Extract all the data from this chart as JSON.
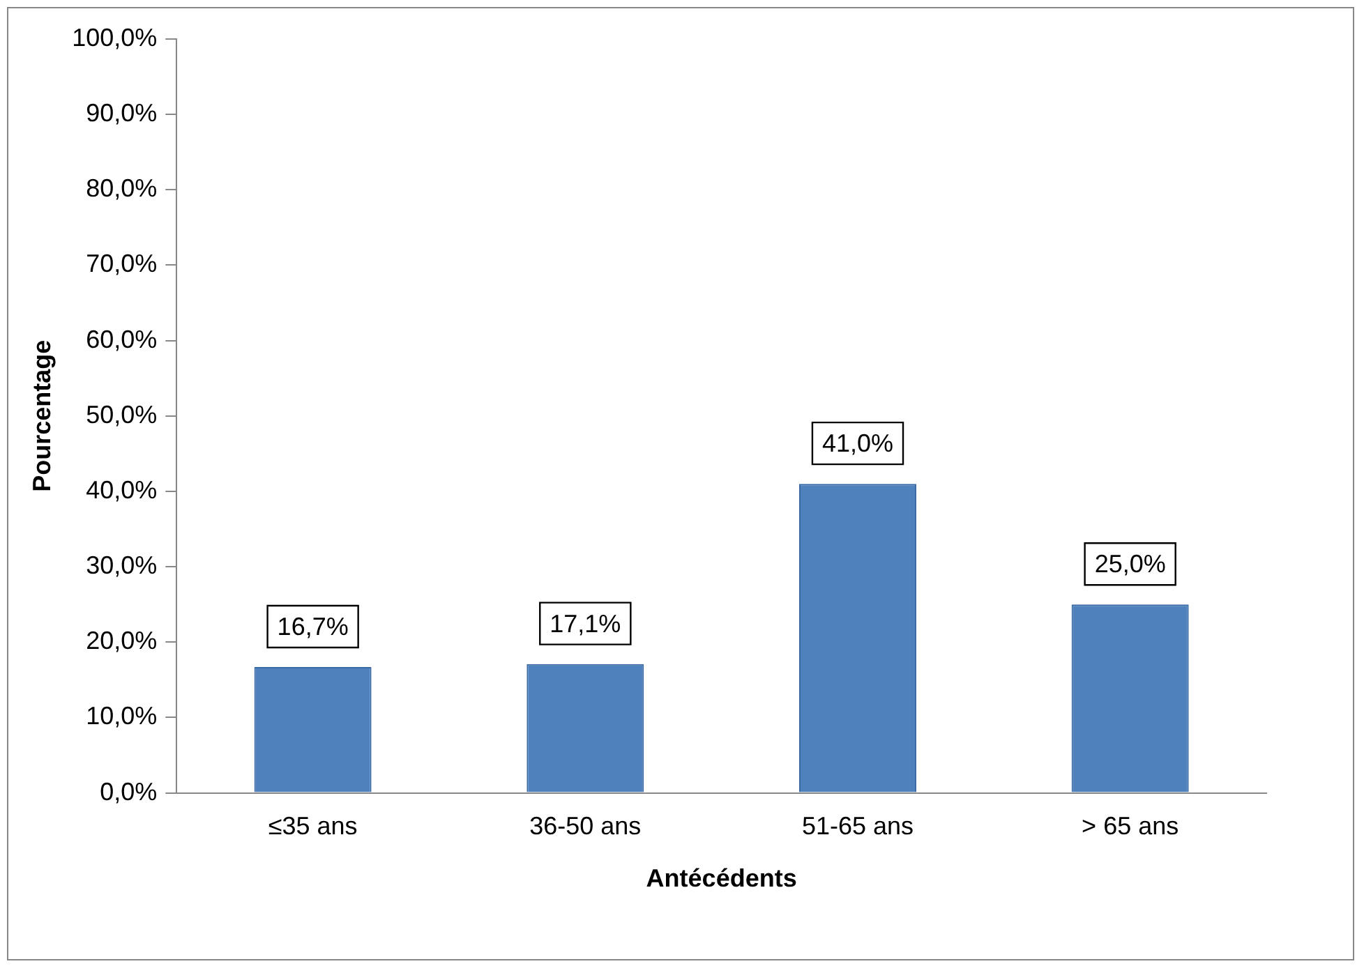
{
  "chart_data": {
    "type": "bar",
    "xlabel": "Antécédents",
    "ylabel": "Pourcentage",
    "categories": [
      "≤35 ans",
      "36-50 ans",
      "51-65 ans",
      "> 65 ans"
    ],
    "values": [
      16.7,
      17.1,
      41.0,
      25.0
    ],
    "value_labels": [
      "16,7%",
      "17,1%",
      "41,0%",
      "25,0%"
    ],
    "color": "#4f81bd",
    "ylim": [
      0,
      100
    ],
    "yticks": [
      {
        "value": 0,
        "label": "0,0%"
      },
      {
        "value": 10,
        "label": "10,0%"
      },
      {
        "value": 20,
        "label": "20,0%"
      },
      {
        "value": 30,
        "label": "30,0%"
      },
      {
        "value": 40,
        "label": "40,0%"
      },
      {
        "value": 50,
        "label": "50,0%"
      },
      {
        "value": 60,
        "label": "60,0%"
      },
      {
        "value": 70,
        "label": "70,0%"
      },
      {
        "value": 80,
        "label": "80,0%"
      },
      {
        "value": 90,
        "label": "90,0%"
      },
      {
        "value": 100,
        "label": "100,0%"
      }
    ],
    "grid": false,
    "legend": false
  }
}
